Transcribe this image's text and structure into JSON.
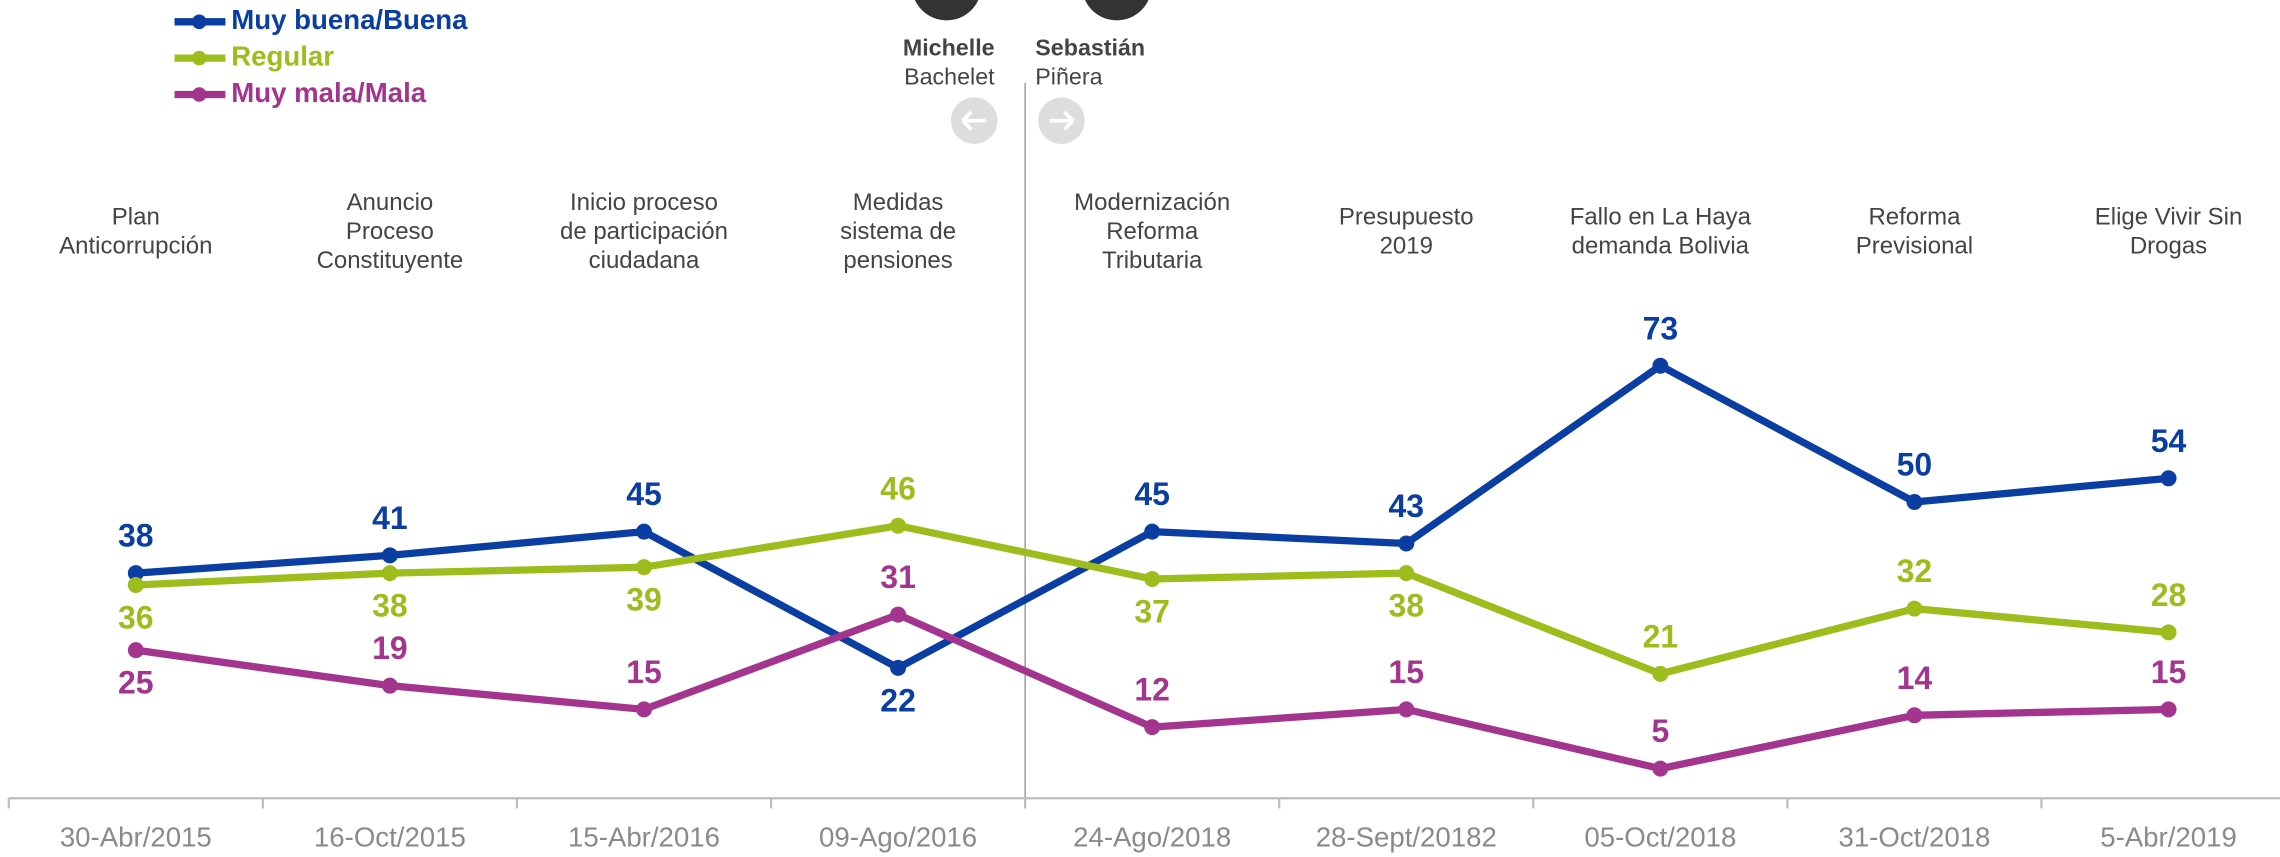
{
  "chart_data": {
    "type": "line",
    "categories": [
      "30-Abr/2015",
      "16-Oct/2015",
      "15-Abr/2016",
      "09-Ago/2016",
      "24-Ago/2018",
      "28-Sept/20182",
      "05-Oct/2018",
      "31-Oct/2018",
      "5-Abr/2019"
    ],
    "events": [
      [
        "Plan",
        "Anticorrupción"
      ],
      [
        "Anuncio",
        "Proceso",
        "Constituyente"
      ],
      [
        "Inicio proceso",
        "de participación",
        "ciudadana"
      ],
      [
        "Medidas",
        "sistema de",
        "pensiones"
      ],
      [
        "Modernización",
        "Reforma",
        "Tributaria"
      ],
      [
        "Presupuesto",
        "2019"
      ],
      [
        "Fallo en La Haya",
        "demanda Bolivia"
      ],
      [
        "Reforma",
        "Previsional"
      ],
      [
        "Elige Vivir Sin",
        "Drogas"
      ]
    ],
    "presidents": [
      {
        "first": "Michelle",
        "last": "Bachelet"
      },
      {
        "first": "Sebastián",
        "last": "Piñera"
      }
    ],
    "series": [
      {
        "name": "Muy buena/Buena",
        "color": "#0a3ea3",
        "values": [
          38,
          41,
          45,
          22,
          45,
          43,
          73,
          50,
          54
        ]
      },
      {
        "name": "Regular",
        "color": "#9dbd1d",
        "values": [
          36,
          38,
          39,
          46,
          37,
          38,
          21,
          32,
          28
        ]
      },
      {
        "name": "Muy mala/Mala",
        "color": "#a3358f",
        "values": [
          25,
          19,
          15,
          31,
          12,
          15,
          5,
          14,
          15
        ]
      }
    ],
    "ylim": [
      0,
      100
    ]
  }
}
